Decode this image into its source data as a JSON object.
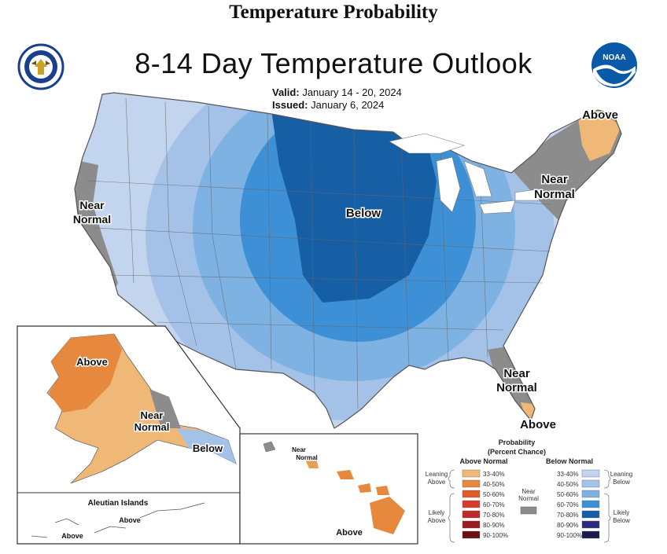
{
  "header": {
    "top_title": "Temperature Probability",
    "title": "8-14 Day Temperature Outlook",
    "valid_label": "Valid:",
    "valid_value": "January 14 - 20, 2024",
    "issued_label": "Issued:",
    "issued_value": "January 6, 2024"
  },
  "logos": {
    "left": "department-seal-icon",
    "right": "noaa-logo-icon",
    "noaa_text": "NOAA"
  },
  "map_labels": {
    "main_below": "Below",
    "northeast_above": "Above",
    "northeast_near_1": "Near",
    "northeast_near_2": "Normal",
    "west_near_1": "Near",
    "west_near_2": "Normal",
    "southeast_near_1": "Near",
    "southeast_near_2": "Normal",
    "florida_above": "Above",
    "alaska_above": "Above",
    "alaska_near_1": "Near",
    "alaska_near_2": "Normal",
    "alaska_below": "Below",
    "aleutian_title": "Aleutian Islands",
    "aleutian_above_1": "Above",
    "aleutian_above_2": "Above",
    "hawaii_near_1": "Near",
    "hawaii_near_2": "Normal",
    "hawaii_above": "Above"
  },
  "legend": {
    "title_1": "Probability",
    "title_2": "(Percent Chance)",
    "above_header": "Above Normal",
    "below_header": "Below Normal",
    "near_label_1": "Near",
    "near_label_2": "Normal",
    "leaning_above_1": "Leaning",
    "leaning_above_2": "Above",
    "likely_above_1": "Likely",
    "likely_above_2": "Above",
    "leaning_below_1": "Leaning",
    "leaning_below_2": "Below",
    "likely_below_1": "Likely",
    "likely_below_2": "Below",
    "ranges": [
      "33-40%",
      "40-50%",
      "50-60%",
      "60-70%",
      "70-80%",
      "80-90%",
      "90-100%"
    ],
    "above_colors": [
      "#f0b877",
      "#e6883e",
      "#e05a2a",
      "#d83a2e",
      "#c0282a",
      "#9a1c1e",
      "#6a1212"
    ],
    "below_colors": [
      "#c2d4ee",
      "#a4c2e8",
      "#7db2e3",
      "#3d8fd6",
      "#165fa5",
      "#2b2a7c",
      "#1c1850"
    ],
    "near_color": "#8c8c8c"
  }
}
